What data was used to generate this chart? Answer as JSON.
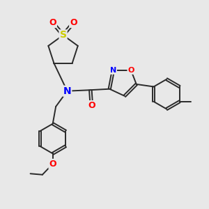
{
  "bg_color": "#e8e8e8",
  "bond_color": "#2a2a2a",
  "bond_width": 1.4,
  "atom_colors": {
    "S": "#cccc00",
    "O": "#ff0000",
    "N": "#0000ff",
    "C": "#2a2a2a"
  }
}
